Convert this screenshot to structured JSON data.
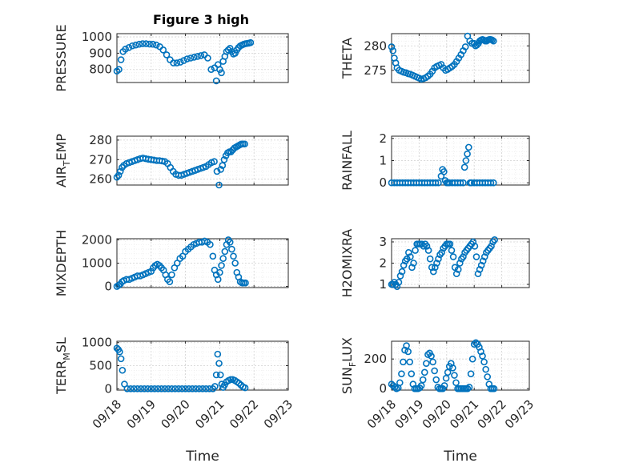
{
  "figure": {
    "title": "Figure 3 high"
  },
  "colors": {
    "series": "#0072BD"
  },
  "chart_data": [
    {
      "type": "scatter",
      "id": "pressure",
      "title": "Figure 3 high",
      "ylabel": "PRESSURE",
      "ylabel_sub": "",
      "ylim": [
        720,
        1020
      ],
      "yticks": [
        800,
        900,
        1000
      ],
      "xlim": [
        0,
        5
      ],
      "xticks": [
        0,
        1,
        2,
        3,
        4,
        5
      ],
      "xticklabels": [
        "09/18",
        "09/19",
        "09/20",
        "09/21",
        "09/22",
        "09/23"
      ],
      "show_xticklabels": false,
      "xlabel": "",
      "x": [
        0.0,
        0.06,
        0.12,
        0.18,
        0.25,
        0.35,
        0.45,
        0.55,
        0.65,
        0.75,
        0.85,
        0.95,
        1.05,
        1.15,
        1.25,
        1.35,
        1.45,
        1.55,
        1.65,
        1.75,
        1.85,
        1.95,
        2.05,
        2.15,
        2.25,
        2.35,
        2.45,
        2.55,
        2.65,
        2.75,
        2.85,
        2.9,
        2.95,
        3.0,
        3.05,
        3.1,
        3.15,
        3.2,
        3.25,
        3.3,
        3.35,
        3.4,
        3.45,
        3.5,
        3.55,
        3.6,
        3.65,
        3.7,
        3.75,
        3.8,
        3.85,
        3.9
      ],
      "y": [
        790,
        800,
        860,
        910,
        925,
        935,
        945,
        950,
        955,
        958,
        958,
        956,
        955,
        950,
        940,
        920,
        890,
        860,
        840,
        840,
        845,
        855,
        865,
        870,
        875,
        880,
        885,
        890,
        870,
        800,
        810,
        730,
        830,
        800,
        780,
        850,
        880,
        910,
        920,
        930,
        910,
        895,
        900,
        920,
        935,
        945,
        950,
        955,
        958,
        960,
        962,
        965
      ]
    },
    {
      "type": "scatter",
      "id": "theta",
      "ylabel": "THETA",
      "ylabel_sub": "",
      "ylim": [
        272.5,
        282.5
      ],
      "yticks": [
        275,
        280
      ],
      "xlim": [
        0,
        5
      ],
      "xticks": [
        0,
        1,
        2,
        3,
        4,
        5
      ],
      "xticklabels": [
        "09/18",
        "09/19",
        "09/20",
        "09/21",
        "09/22",
        "09/23"
      ],
      "show_xticklabels": false,
      "xlabel": "",
      "x": [
        0.0,
        0.05,
        0.1,
        0.15,
        0.2,
        0.28,
        0.36,
        0.44,
        0.52,
        0.6,
        0.68,
        0.76,
        0.84,
        0.92,
        1.0,
        1.08,
        1.16,
        1.24,
        1.32,
        1.4,
        1.48,
        1.56,
        1.64,
        1.72,
        1.8,
        1.88,
        1.96,
        2.04,
        2.12,
        2.2,
        2.28,
        2.36,
        2.44,
        2.52,
        2.6,
        2.68,
        2.76,
        2.84,
        2.92,
        3.0,
        3.05,
        3.1,
        3.15,
        3.2,
        3.25,
        3.3,
        3.35,
        3.4,
        3.45,
        3.5,
        3.55,
        3.6,
        3.65,
        3.7
      ],
      "y": [
        279.8,
        279.0,
        277.5,
        276.5,
        275.5,
        275.0,
        274.8,
        274.6,
        274.5,
        274.3,
        274.2,
        274.0,
        273.8,
        273.6,
        273.4,
        273.2,
        273.3,
        273.5,
        273.8,
        274.2,
        274.8,
        275.5,
        275.8,
        276.0,
        276.2,
        275.5,
        275.0,
        275.2,
        275.5,
        275.8,
        276.2,
        276.8,
        277.5,
        278.2,
        279.0,
        279.8,
        282.0,
        281.0,
        280.5,
        280.5,
        280.0,
        280.2,
        280.5,
        281.0,
        281.2,
        281.3,
        281.2,
        281.0,
        281.0,
        281.2,
        281.3,
        281.3,
        281.2,
        281.0
      ]
    },
    {
      "type": "scatter",
      "id": "air_temp",
      "ylabel": "AIR",
      "ylabel_sub": "T",
      "ylabel_rest": "EMP",
      "ylim": [
        257,
        282
      ],
      "yticks": [
        260,
        270,
        280
      ],
      "xlim": [
        0,
        5
      ],
      "xticks": [
        0,
        1,
        2,
        3,
        4,
        5
      ],
      "xticklabels": [
        "09/18",
        "09/19",
        "09/20",
        "09/21",
        "09/22",
        "09/23"
      ],
      "show_xticklabels": false,
      "xlabel": "",
      "x": [
        0.0,
        0.05,
        0.1,
        0.15,
        0.2,
        0.28,
        0.36,
        0.44,
        0.52,
        0.6,
        0.68,
        0.76,
        0.84,
        0.92,
        1.0,
        1.08,
        1.16,
        1.24,
        1.32,
        1.4,
        1.48,
        1.56,
        1.64,
        1.72,
        1.8,
        1.88,
        1.96,
        2.04,
        2.12,
        2.2,
        2.28,
        2.36,
        2.44,
        2.52,
        2.6,
        2.68,
        2.76,
        2.84,
        2.92,
        2.98,
        3.03,
        3.08,
        3.13,
        3.18,
        3.23,
        3.28,
        3.33,
        3.38,
        3.43,
        3.48,
        3.53,
        3.58,
        3.63,
        3.68,
        3.73
      ],
      "y": [
        261,
        262,
        264,
        266,
        267,
        268,
        268.5,
        269,
        269.5,
        270,
        270.5,
        270.8,
        270.5,
        270.2,
        270,
        269.8,
        269.5,
        269.5,
        269.3,
        269,
        268,
        266,
        264,
        262.5,
        262,
        262,
        262.5,
        263,
        263.5,
        264,
        264.5,
        265,
        265.5,
        266,
        266.5,
        267.5,
        268.5,
        269,
        264,
        257,
        265,
        267,
        270,
        272,
        273.5,
        274,
        274,
        275,
        276,
        276.5,
        277,
        277.5,
        278,
        278,
        278
      ]
    },
    {
      "type": "scatter",
      "id": "rainfall",
      "ylabel": "RAINFALL",
      "ylabel_sub": "",
      "ylim": [
        -0.1,
        2.1
      ],
      "yticks": [
        0,
        1,
        2
      ],
      "xlim": [
        0,
        5
      ],
      "xticks": [
        0,
        1,
        2,
        3,
        4,
        5
      ],
      "xticklabels": [
        "09/18",
        "09/19",
        "09/20",
        "09/21",
        "09/22",
        "09/23"
      ],
      "show_xticklabels": false,
      "xlabel": "",
      "x": [
        0.0,
        0.1,
        0.2,
        0.3,
        0.4,
        0.5,
        0.6,
        0.7,
        0.8,
        0.9,
        1.0,
        1.1,
        1.2,
        1.3,
        1.4,
        1.5,
        1.6,
        1.7,
        1.8,
        1.85,
        1.9,
        1.95,
        2.0,
        2.05,
        2.1,
        2.2,
        2.3,
        2.4,
        2.5,
        2.6,
        2.65,
        2.7,
        2.75,
        2.8,
        2.85,
        2.9,
        3.0,
        3.1,
        3.2,
        3.3,
        3.4,
        3.5,
        3.6,
        3.7
      ],
      "y": [
        0,
        0,
        0,
        0,
        0,
        0,
        0,
        0,
        0,
        0,
        0,
        0,
        0,
        0,
        0,
        0,
        0,
        0,
        0.3,
        0.6,
        0.5,
        0.1,
        0,
        0,
        0,
        0,
        0,
        0,
        0,
        0,
        0.7,
        1.0,
        1.3,
        1.6,
        0,
        0,
        0,
        0,
        0,
        0,
        0,
        0,
        0,
        0
      ]
    },
    {
      "type": "scatter",
      "id": "mixdepth",
      "ylabel": "MIXDEPTH",
      "ylabel_sub": "",
      "ylim": [
        -50,
        2050
      ],
      "yticks": [
        0,
        1000,
        2000
      ],
      "xlim": [
        0,
        5
      ],
      "xticks": [
        0,
        1,
        2,
        3,
        4,
        5
      ],
      "xticklabels": [
        "09/18",
        "09/19",
        "09/20",
        "09/21",
        "09/22",
        "09/23"
      ],
      "show_xticklabels": false,
      "xlabel": "",
      "x": [
        0.0,
        0.05,
        0.1,
        0.15,
        0.2,
        0.28,
        0.36,
        0.44,
        0.52,
        0.6,
        0.68,
        0.76,
        0.84,
        0.92,
        1.0,
        1.06,
        1.12,
        1.18,
        1.24,
        1.3,
        1.36,
        1.42,
        1.48,
        1.54,
        1.6,
        1.68,
        1.76,
        1.84,
        1.92,
        2.0,
        2.08,
        2.16,
        2.24,
        2.32,
        2.4,
        2.48,
        2.56,
        2.64,
        2.72,
        2.8,
        2.85,
        2.9,
        2.95,
        3.0,
        3.05,
        3.1,
        3.15,
        3.2,
        3.25,
        3.3,
        3.35,
        3.4,
        3.45,
        3.5,
        3.55,
        3.6,
        3.65,
        3.7,
        3.75
      ],
      "y": [
        0,
        50,
        100,
        200,
        250,
        300,
        300,
        350,
        400,
        450,
        450,
        500,
        550,
        600,
        650,
        800,
        900,
        950,
        900,
        800,
        700,
        500,
        300,
        200,
        500,
        800,
        1000,
        1200,
        1300,
        1500,
        1600,
        1700,
        1800,
        1850,
        1900,
        1900,
        1950,
        1900,
        1800,
        1300,
        700,
        500,
        300,
        600,
        900,
        1200,
        1500,
        1800,
        2000,
        1900,
        1600,
        1300,
        1000,
        600,
        400,
        200,
        150,
        150,
        150
      ]
    },
    {
      "type": "scatter",
      "id": "h2omixra",
      "ylabel": "H2OMIXRA",
      "ylabel_sub": "",
      "ylim": [
        0.85,
        3.15
      ],
      "yticks": [
        1,
        2,
        3
      ],
      "xlim": [
        0,
        5
      ],
      "xticks": [
        0,
        1,
        2,
        3,
        4,
        5
      ],
      "xticklabels": [
        "09/18",
        "09/19",
        "09/20",
        "09/21",
        "09/22",
        "09/23"
      ],
      "show_xticklabels": false,
      "xlabel": "",
      "x": [
        0.0,
        0.05,
        0.1,
        0.15,
        0.2,
        0.26,
        0.32,
        0.38,
        0.44,
        0.5,
        0.56,
        0.62,
        0.68,
        0.74,
        0.8,
        0.86,
        0.92,
        0.98,
        1.04,
        1.1,
        1.16,
        1.22,
        1.28,
        1.34,
        1.4,
        1.46,
        1.52,
        1.58,
        1.64,
        1.7,
        1.76,
        1.82,
        1.88,
        1.94,
        2.0,
        2.06,
        2.12,
        2.18,
        2.24,
        2.3,
        2.36,
        2.42,
        2.48,
        2.54,
        2.6,
        2.66,
        2.72,
        2.78,
        2.84,
        2.9,
        2.96,
        3.02,
        3.08,
        3.14,
        3.2,
        3.26,
        3.32,
        3.38,
        3.44,
        3.5,
        3.56,
        3.62,
        3.68,
        3.74
      ],
      "y": [
        1.0,
        1.0,
        1.1,
        1.0,
        0.9,
        1.1,
        1.4,
        1.6,
        1.9,
        2.1,
        2.2,
        2.5,
        2.3,
        1.8,
        2.0,
        2.6,
        2.9,
        2.9,
        2.9,
        2.9,
        2.8,
        2.9,
        2.8,
        2.6,
        2.2,
        1.8,
        1.6,
        1.8,
        2.0,
        2.2,
        2.4,
        2.5,
        2.7,
        2.8,
        2.9,
        2.9,
        2.9,
        2.6,
        2.3,
        1.8,
        1.5,
        1.7,
        2.0,
        2.2,
        2.3,
        2.5,
        2.6,
        2.7,
        2.8,
        2.9,
        3.0,
        2.8,
        2.3,
        1.5,
        1.7,
        1.9,
        2.1,
        2.3,
        2.5,
        2.6,
        2.7,
        2.8,
        3.0,
        3.1
      ]
    },
    {
      "type": "scatter",
      "id": "terr_msl",
      "ylabel": "TERR",
      "ylabel_sub": "M",
      "ylabel_rest": "SL",
      "ylim": [
        -30,
        1030
      ],
      "yticks": [
        0,
        500,
        1000
      ],
      "xlim": [
        0,
        5
      ],
      "xticks": [
        0,
        1,
        2,
        3,
        4,
        5
      ],
      "xticklabels": [
        "09/18",
        "09/19",
        "09/20",
        "09/21",
        "09/22",
        "09/23"
      ],
      "show_xticklabels": true,
      "xlabel": "Time",
      "x": [
        0.0,
        0.04,
        0.08,
        0.12,
        0.16,
        0.22,
        0.3,
        0.4,
        0.5,
        0.6,
        0.7,
        0.8,
        0.9,
        1.0,
        1.1,
        1.2,
        1.3,
        1.4,
        1.5,
        1.6,
        1.7,
        1.8,
        1.9,
        2.0,
        2.1,
        2.2,
        2.3,
        2.4,
        2.5,
        2.6,
        2.7,
        2.8,
        2.86,
        2.9,
        2.94,
        2.98,
        3.02,
        3.06,
        3.1,
        3.14,
        3.2,
        3.26,
        3.32,
        3.38,
        3.44,
        3.5,
        3.56,
        3.62,
        3.68,
        3.74
      ],
      "y": [
        880,
        850,
        800,
        650,
        400,
        100,
        0,
        0,
        0,
        0,
        0,
        0,
        0,
        0,
        0,
        0,
        0,
        0,
        0,
        0,
        0,
        0,
        0,
        0,
        0,
        0,
        0,
        0,
        0,
        0,
        0,
        0,
        50,
        300,
        750,
        550,
        300,
        100,
        30,
        80,
        150,
        180,
        200,
        200,
        180,
        150,
        120,
        80,
        40,
        20
      ]
    },
    {
      "type": "scatter",
      "id": "sun_flux",
      "ylabel": "SUN",
      "ylabel_sub": "F",
      "ylabel_rest": "LUX",
      "ylim": [
        -10,
        320
      ],
      "yticks": [
        0,
        200
      ],
      "xlim": [
        0,
        5
      ],
      "xticks": [
        0,
        1,
        2,
        3,
        4,
        5
      ],
      "xticklabels": [
        "09/18",
        "09/19",
        "09/20",
        "09/21",
        "09/22",
        "09/23"
      ],
      "show_xticklabels": true,
      "xlabel": "Time",
      "x": [
        0.0,
        0.06,
        0.12,
        0.18,
        0.24,
        0.3,
        0.36,
        0.42,
        0.48,
        0.54,
        0.6,
        0.66,
        0.72,
        0.78,
        0.84,
        0.9,
        0.96,
        1.02,
        1.08,
        1.14,
        1.2,
        1.26,
        1.32,
        1.38,
        1.44,
        1.5,
        1.56,
        1.62,
        1.68,
        1.74,
        1.8,
        1.86,
        1.92,
        1.98,
        2.04,
        2.1,
        2.16,
        2.22,
        2.28,
        2.34,
        2.4,
        2.46,
        2.52,
        2.58,
        2.64,
        2.7,
        2.76,
        2.82,
        2.88,
        2.94,
        3.0,
        3.06,
        3.12,
        3.18,
        3.24,
        3.3,
        3.36,
        3.42,
        3.48,
        3.54,
        3.6,
        3.66,
        3.72
      ],
      "y": [
        30,
        20,
        10,
        0,
        5,
        40,
        100,
        180,
        260,
        290,
        250,
        180,
        100,
        30,
        0,
        0,
        0,
        5,
        20,
        60,
        110,
        170,
        230,
        240,
        220,
        180,
        120,
        60,
        10,
        0,
        0,
        0,
        20,
        70,
        110,
        150,
        170,
        140,
        90,
        40,
        0,
        0,
        0,
        0,
        0,
        0,
        0,
        10,
        100,
        200,
        300,
        310,
        300,
        280,
        250,
        220,
        180,
        130,
        80,
        30,
        0,
        0,
        0
      ]
    }
  ]
}
